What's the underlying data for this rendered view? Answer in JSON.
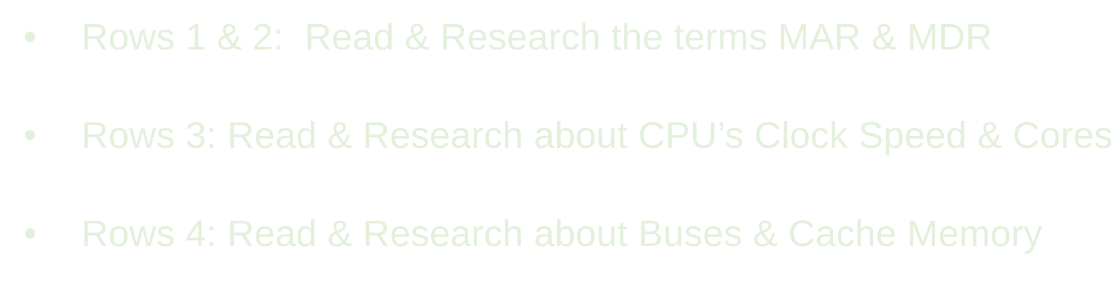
{
  "bullets": [
    {
      "text": "Rows 1 & 2:  Read & Research the terms MAR & MDR"
    },
    {
      "text": "Rows 3: Read & Research about CPU’s Clock Speed & Cores"
    },
    {
      "text": "Rows 4: Read & Research about Buses & Cache Memory"
    }
  ],
  "colors": {
    "text": "#e3f0dc",
    "background": "#ffffff"
  }
}
